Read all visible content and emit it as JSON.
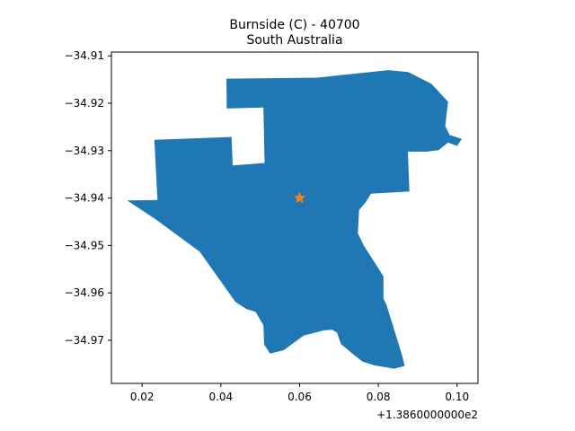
{
  "chart_data": {
    "type": "map",
    "title": "Burnside (C) - 40700",
    "subtitle": "South Australia",
    "xlim": [
      0.0122,
      0.1053
    ],
    "ylim": [
      -34.9791,
      -34.9092
    ],
    "x_offset_label": "+1.3860000000e2",
    "x_ticks": [
      0.02,
      0.04,
      0.06,
      0.08,
      0.1
    ],
    "x_tick_labels": [
      "0.02",
      "0.04",
      "0.06",
      "0.08",
      "0.10"
    ],
    "y_ticks": [
      -34.91,
      -34.92,
      -34.93,
      -34.94,
      -34.95,
      -34.96,
      -34.97
    ],
    "y_tick_labels": [
      "−34.91",
      "−34.92",
      "−34.93",
      "−34.94",
      "−34.95",
      "−34.96",
      "−34.97"
    ],
    "region": {
      "name": "Burnside (C)",
      "fill": "#1f77b4",
      "outline": [
        [
          0.0414,
          -34.9148
        ],
        [
          0.0645,
          -34.9146
        ],
        [
          0.0825,
          -34.913
        ],
        [
          0.0876,
          -34.9134
        ],
        [
          0.0935,
          -34.9159
        ],
        [
          0.0977,
          -34.9197
        ],
        [
          0.0974,
          -34.9218
        ],
        [
          0.097,
          -34.9248
        ],
        [
          0.0981,
          -34.9267
        ],
        [
          0.1012,
          -34.9275
        ],
        [
          0.1,
          -34.929
        ],
        [
          0.0977,
          -34.9283
        ],
        [
          0.0953,
          -34.9299
        ],
        [
          0.0923,
          -34.9302
        ],
        [
          0.0875,
          -34.9302
        ],
        [
          0.0879,
          -34.9386
        ],
        [
          0.0781,
          -34.9391
        ],
        [
          0.0768,
          -34.9409
        ],
        [
          0.0751,
          -34.9425
        ],
        [
          0.0748,
          -34.9474
        ],
        [
          0.0763,
          -34.95
        ],
        [
          0.0813,
          -34.9565
        ],
        [
          0.0813,
          -34.9612
        ],
        [
          0.0821,
          -34.9626
        ],
        [
          0.086,
          -34.9731
        ],
        [
          0.0867,
          -34.9754
        ],
        [
          0.084,
          -34.976
        ],
        [
          0.079,
          -34.9753
        ],
        [
          0.076,
          -34.9745
        ],
        [
          0.074,
          -34.9732
        ],
        [
          0.0705,
          -34.9708
        ],
        [
          0.0695,
          -34.9684
        ],
        [
          0.0683,
          -34.9678
        ],
        [
          0.0662,
          -34.9679
        ],
        [
          0.061,
          -34.969
        ],
        [
          0.056,
          -34.9721
        ],
        [
          0.0525,
          -34.9728
        ],
        [
          0.051,
          -34.9709
        ],
        [
          0.0508,
          -34.9668
        ],
        [
          0.0488,
          -34.964
        ],
        [
          0.0465,
          -34.9634
        ],
        [
          0.0437,
          -34.9619
        ],
        [
          0.0346,
          -34.9513
        ],
        [
          0.0233,
          -34.9444
        ],
        [
          0.0162,
          -34.9405
        ],
        [
          0.0239,
          -34.9404
        ],
        [
          0.0231,
          -34.9277
        ],
        [
          0.0427,
          -34.9271
        ],
        [
          0.043,
          -34.9331
        ],
        [
          0.0511,
          -34.9326
        ],
        [
          0.0508,
          -34.9209
        ],
        [
          0.0415,
          -34.9211
        ]
      ]
    },
    "marker": {
      "symbol": "star",
      "color": "#ff7f0e",
      "x": 0.06,
      "y": -34.94
    }
  }
}
